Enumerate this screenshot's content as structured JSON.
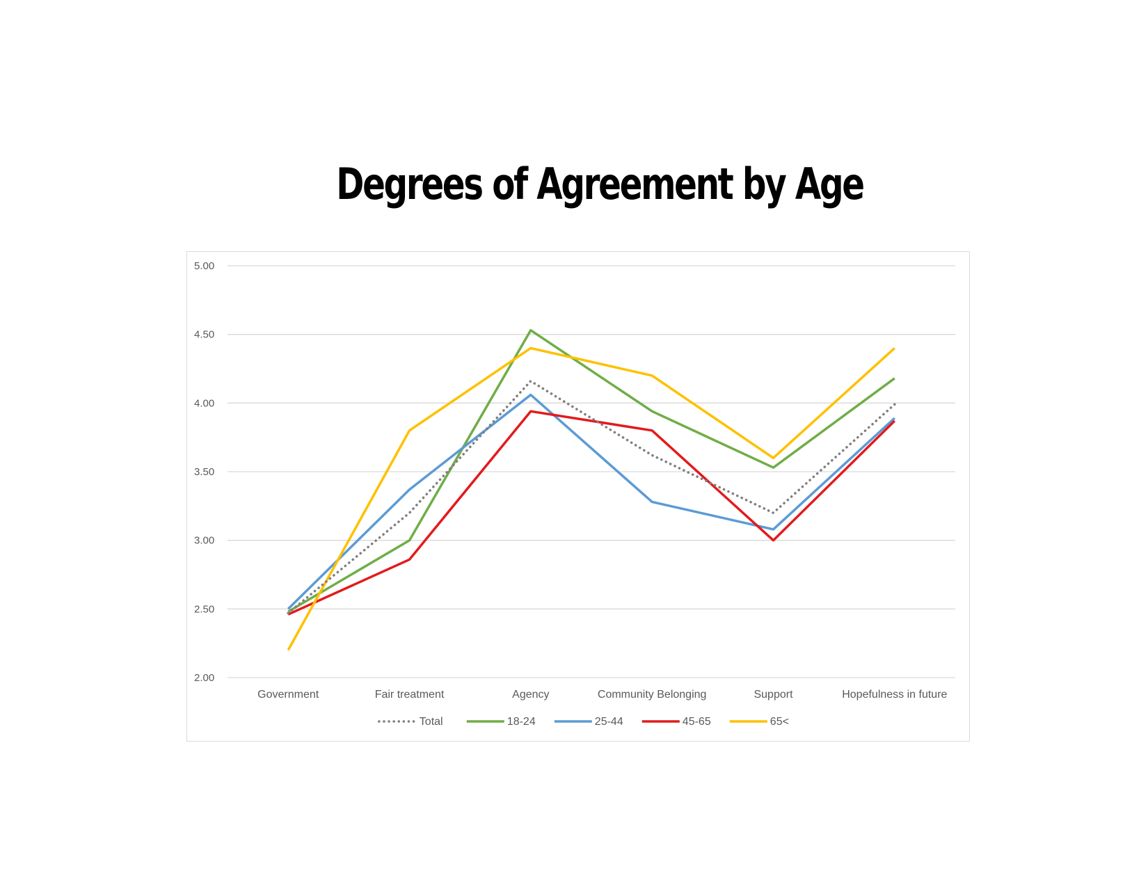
{
  "chart_data": {
    "type": "line",
    "title": "Degrees of Agreement by Age",
    "xlabel": "",
    "ylabel": "",
    "categories": [
      "Government",
      "Fair treatment",
      "Agency",
      "Community Belonging",
      "Support",
      "Hopefulness in future"
    ],
    "ylim": [
      2.0,
      5.0
    ],
    "yticks": [
      "5.00",
      "4.50",
      "4.00",
      "3.50",
      "3.00",
      "2.50",
      "2.00"
    ],
    "grid": "horizontal",
    "legend_position": "bottom",
    "series": [
      {
        "name": "Total",
        "color": "#7f7f7f",
        "style": "dotted",
        "values": [
          2.47,
          3.2,
          4.16,
          3.62,
          3.2,
          3.99
        ]
      },
      {
        "name": "18-24",
        "color": "#70ad47",
        "style": "solid",
        "values": [
          2.48,
          3.0,
          4.53,
          3.94,
          3.53,
          4.18
        ]
      },
      {
        "name": "25-44",
        "color": "#5b9bd5",
        "style": "solid",
        "values": [
          2.5,
          3.37,
          4.06,
          3.28,
          3.08,
          3.89
        ]
      },
      {
        "name": "45-65",
        "color": "#e31a1c",
        "style": "solid",
        "values": [
          2.46,
          2.86,
          3.94,
          3.8,
          3.0,
          3.87
        ]
      },
      {
        "name": "65<",
        "color": "#ffc000",
        "style": "solid",
        "values": [
          2.2,
          3.8,
          4.4,
          4.2,
          3.6,
          4.4
        ]
      }
    ]
  }
}
